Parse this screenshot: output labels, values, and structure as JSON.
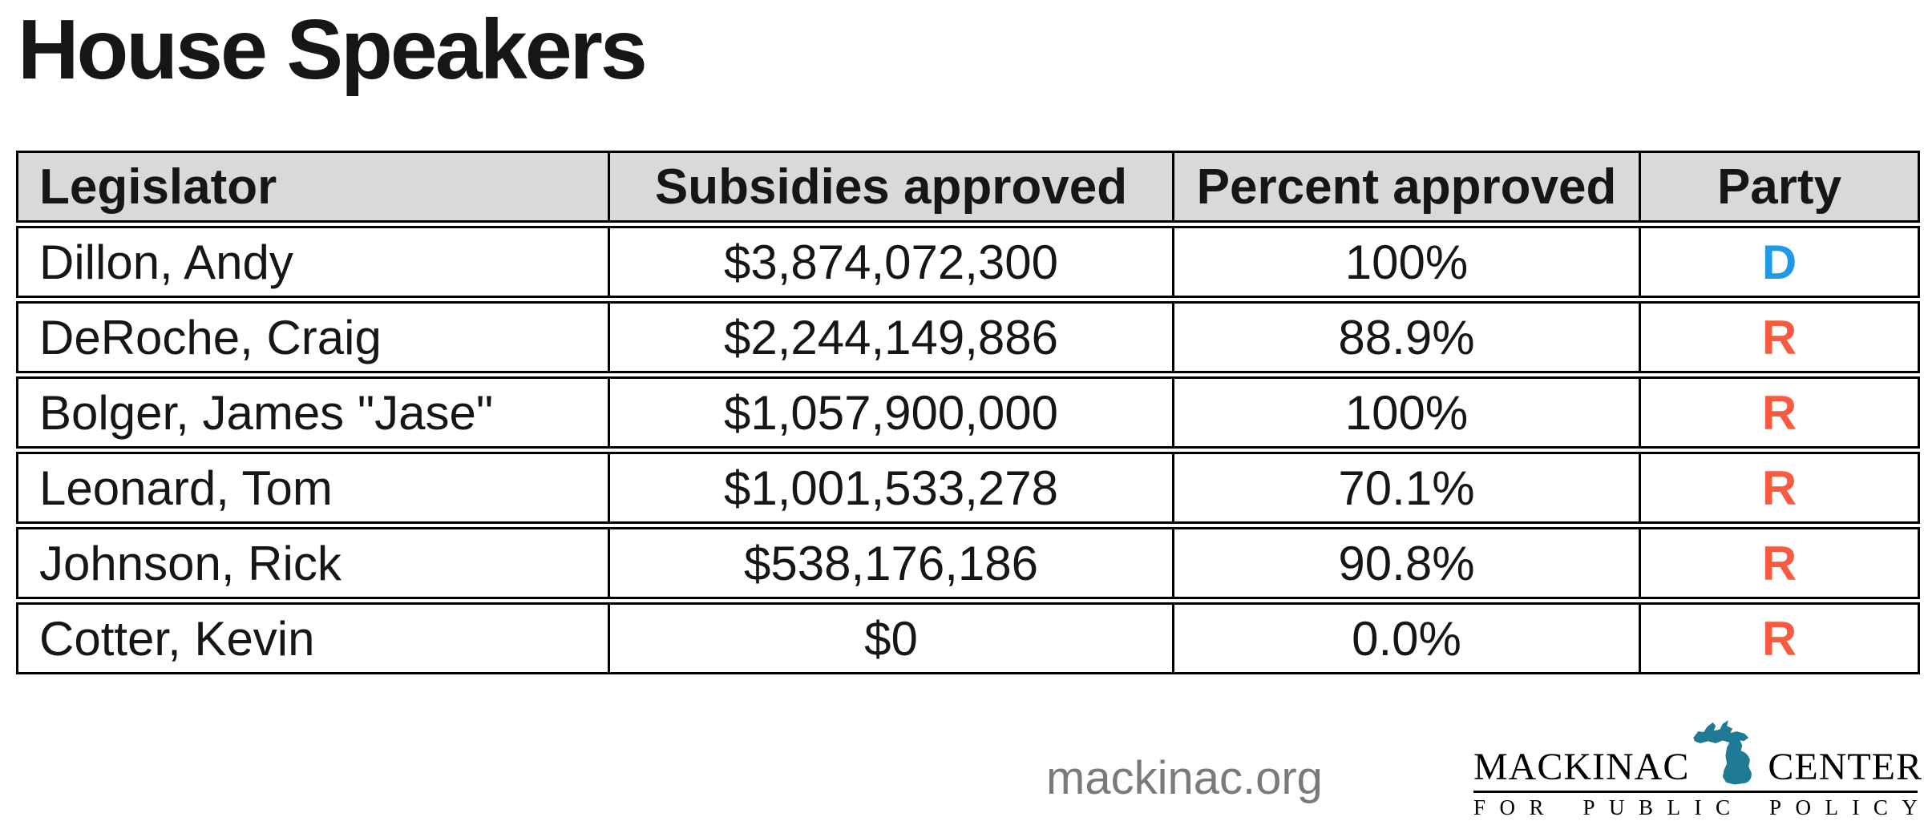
{
  "title": "House Speakers",
  "chart_data": {
    "type": "table",
    "title": "House Speakers",
    "columns": [
      "Legislator",
      "Subsidies approved",
      "Percent approved",
      "Party"
    ],
    "rows": [
      [
        "Dillon, Andy",
        "$3,874,072,300",
        "100%",
        "D"
      ],
      [
        "DeRoche, Craig",
        "$2,244,149,886",
        "88.9%",
        "R"
      ],
      [
        "Bolger, James \"Jase\"",
        "$1,057,900,000",
        "100%",
        "R"
      ],
      [
        "Leonard, Tom",
        "$1,001,533,278",
        "70.1%",
        "R"
      ],
      [
        "Johnson, Rick",
        "$538,176,186",
        "90.8%",
        "R"
      ],
      [
        "Cotter, Kevin",
        "$0",
        "0.0%",
        "R"
      ]
    ],
    "subsidies_values": [
      3874072300,
      2244149886,
      1057900000,
      1001533278,
      538176186,
      0
    ],
    "percent_values": [
      100,
      88.9,
      100,
      70.1,
      90.8,
      0.0
    ]
  },
  "footer": {
    "website": "mackinac.org",
    "logo": {
      "word_left": "MACKINAC",
      "word_right": "CENTER",
      "tagline": "FOR PUBLIC POLICY",
      "michigan_icon": "michigan-state-icon"
    }
  },
  "colors": {
    "democrat": "#1E9AE9",
    "republican": "#F95B41",
    "header_bg": "#D9D9D9",
    "table_border": "#000000",
    "text": "#161616",
    "website": "#7A7A7A",
    "logo_teal": "#1E7A95",
    "logo_text": "#000000"
  }
}
